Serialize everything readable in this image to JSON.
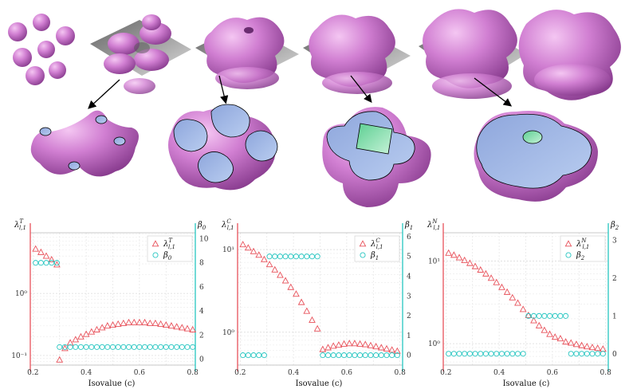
{
  "colors": {
    "red": "#e8515a",
    "cyan": "#26c6c1",
    "blob": "#c56ec6",
    "blob_dark": "#8e3f93",
    "cut_blue": "#a8bde8",
    "cut_green": "#8fe0b0",
    "plane": "#7a7a7a"
  },
  "xlabel": "Isovalue (c)",
  "chart_data": [
    {
      "type": "scatter",
      "left_axis": {
        "symbol": "λ",
        "sup": "T",
        "sub": "l,1",
        "scale": "log",
        "range": [
          0.07,
          9.5
        ],
        "ticks": [
          "10⁰",
          "10⁻¹"
        ]
      },
      "right_axis": {
        "symbol": "β",
        "sub": "0",
        "range": [
          -0.5,
          10.5
        ],
        "ticks": [
          "0",
          "2",
          "4",
          "6",
          "8",
          "10"
        ]
      },
      "xlim": [
        0.19,
        0.81
      ],
      "xticks": [
        "0.2",
        "0.4",
        "0.6",
        "0.8"
      ],
      "legend": [
        {
          "symbol": "λ",
          "sup": "T",
          "sub": "l,1",
          "marker": "triangle"
        },
        {
          "symbol": "β",
          "sub": "0",
          "marker": "circle"
        }
      ],
      "legend_position": "top-right",
      "series": [
        {
          "axis": "left",
          "marker": "triangle",
          "x": [
            0.21,
            0.23,
            0.25,
            0.27,
            0.29,
            0.3,
            0.32,
            0.34,
            0.36,
            0.38,
            0.4,
            0.42,
            0.44,
            0.46,
            0.48,
            0.5,
            0.52,
            0.54,
            0.56,
            0.58,
            0.6,
            0.62,
            0.64,
            0.66,
            0.68,
            0.7,
            0.72,
            0.74,
            0.76,
            0.78,
            0.8
          ],
          "y": [
            5.2,
            4.6,
            4.0,
            3.5,
            2.9,
            0.085,
            0.13,
            0.16,
            0.18,
            0.2,
            0.22,
            0.24,
            0.26,
            0.28,
            0.3,
            0.31,
            0.32,
            0.33,
            0.34,
            0.34,
            0.34,
            0.34,
            0.33,
            0.33,
            0.32,
            0.31,
            0.3,
            0.29,
            0.28,
            0.27,
            0.26
          ]
        },
        {
          "axis": "right",
          "marker": "circle",
          "x": [
            0.21,
            0.23,
            0.25,
            0.27,
            0.29,
            0.3,
            0.32,
            0.34,
            0.36,
            0.38,
            0.4,
            0.42,
            0.44,
            0.46,
            0.48,
            0.5,
            0.52,
            0.54,
            0.56,
            0.58,
            0.6,
            0.62,
            0.64,
            0.66,
            0.68,
            0.7,
            0.72,
            0.74,
            0.76,
            0.78,
            0.8
          ],
          "y": [
            8,
            8,
            8,
            8,
            8,
            1,
            1,
            1,
            1,
            1,
            1,
            1,
            1,
            1,
            1,
            1,
            1,
            1,
            1,
            1,
            1,
            1,
            1,
            1,
            1,
            1,
            1,
            1,
            1,
            1,
            1
          ]
        }
      ]
    },
    {
      "type": "scatter",
      "left_axis": {
        "symbol": "λ",
        "sup": "C",
        "sub": "l,1",
        "scale": "log",
        "range": [
          0.4,
          16
        ],
        "ticks": [
          "10¹",
          "10⁰"
        ]
      },
      "right_axis": {
        "symbol": "β",
        "sub": "1",
        "range": [
          -0.5,
          6.2
        ],
        "ticks": [
          "0",
          "1",
          "2",
          "3",
          "4",
          "5",
          "6"
        ]
      },
      "xlim": [
        0.19,
        0.81
      ],
      "xticks": [
        "0.2",
        "0.4",
        "0.6",
        "0.8"
      ],
      "legend": [
        {
          "symbol": "λ",
          "sup": "C",
          "sub": "l,1",
          "marker": "triangle"
        },
        {
          "symbol": "β",
          "sub": "1",
          "marker": "circle"
        }
      ],
      "legend_position": "top-right",
      "series": [
        {
          "axis": "left",
          "marker": "triangle",
          "x": [
            0.21,
            0.23,
            0.25,
            0.27,
            0.29,
            0.31,
            0.33,
            0.35,
            0.37,
            0.39,
            0.41,
            0.43,
            0.45,
            0.47,
            0.49,
            0.51,
            0.53,
            0.55,
            0.57,
            0.59,
            0.61,
            0.63,
            0.65,
            0.67,
            0.69,
            0.71,
            0.73,
            0.75,
            0.77,
            0.79
          ],
          "y": [
            11.5,
            10.5,
            9.5,
            8.6,
            7.6,
            6.6,
            5.7,
            4.9,
            4.2,
            3.5,
            2.9,
            2.3,
            1.8,
            1.4,
            1.1,
            0.62,
            0.65,
            0.68,
            0.7,
            0.72,
            0.73,
            0.73,
            0.72,
            0.71,
            0.69,
            0.67,
            0.65,
            0.63,
            0.61,
            0.59
          ]
        },
        {
          "axis": "right",
          "marker": "circle",
          "x": [
            0.21,
            0.23,
            0.25,
            0.27,
            0.29,
            0.31,
            0.33,
            0.35,
            0.37,
            0.39,
            0.41,
            0.43,
            0.45,
            0.47,
            0.49,
            0.51,
            0.53,
            0.55,
            0.57,
            0.59,
            0.61,
            0.63,
            0.65,
            0.67,
            0.69,
            0.71,
            0.73,
            0.75,
            0.77,
            0.79
          ],
          "y": [
            0,
            0,
            0,
            0,
            0,
            5,
            5,
            5,
            5,
            5,
            5,
            5,
            5,
            5,
            5,
            0,
            0,
            0,
            0,
            0,
            0,
            0,
            0,
            0,
            0,
            0,
            0,
            0,
            0,
            0
          ]
        }
      ]
    },
    {
      "type": "scatter",
      "left_axis": {
        "symbol": "λ",
        "sup": "N",
        "sub": "l,1",
        "scale": "log",
        "range": [
          0.55,
          22
        ],
        "ticks": [
          "10¹",
          "10⁰"
        ]
      },
      "right_axis": {
        "symbol": "β",
        "sub": "2",
        "range": [
          -0.3,
          3.2
        ],
        "ticks": [
          "0",
          "1",
          "2",
          "3"
        ]
      },
      "xlim": [
        0.19,
        0.81
      ],
      "xticks": [
        "0.2",
        "0.4",
        "0.6",
        "0.8"
      ],
      "legend": [
        {
          "symbol": "λ",
          "sup": "N",
          "sub": "l,1",
          "marker": "triangle"
        },
        {
          "symbol": "β",
          "sub": "2",
          "marker": "circle"
        }
      ],
      "legend_position": "top-right",
      "series": [
        {
          "axis": "left",
          "marker": "triangle",
          "x": [
            0.21,
            0.23,
            0.25,
            0.27,
            0.29,
            0.31,
            0.33,
            0.35,
            0.37,
            0.39,
            0.41,
            0.43,
            0.45,
            0.47,
            0.49,
            0.51,
            0.53,
            0.55,
            0.57,
            0.59,
            0.61,
            0.63,
            0.65,
            0.67,
            0.69,
            0.71,
            0.73,
            0.75,
            0.77,
            0.79
          ],
          "y": [
            12.5,
            11.8,
            11.0,
            10.2,
            9.4,
            8.6,
            7.8,
            7.0,
            6.2,
            5.5,
            4.8,
            4.2,
            3.6,
            3.1,
            2.6,
            2.2,
            1.9,
            1.65,
            1.45,
            1.3,
            1.2,
            1.15,
            1.05,
            1.02,
            0.98,
            0.95,
            0.92,
            0.9,
            0.88,
            0.86
          ]
        },
        {
          "axis": "right",
          "marker": "circle",
          "x": [
            0.21,
            0.23,
            0.25,
            0.27,
            0.29,
            0.31,
            0.33,
            0.35,
            0.37,
            0.39,
            0.41,
            0.43,
            0.45,
            0.47,
            0.49,
            0.51,
            0.53,
            0.55,
            0.57,
            0.59,
            0.61,
            0.63,
            0.65,
            0.67,
            0.69,
            0.71,
            0.73,
            0.75,
            0.77,
            0.79
          ],
          "y": [
            0,
            0,
            0,
            0,
            0,
            0,
            0,
            0,
            0,
            0,
            0,
            0,
            0,
            0,
            0,
            1,
            1,
            1,
            1,
            1,
            1,
            1,
            1,
            0,
            0,
            0,
            0,
            0,
            0,
            0
          ]
        }
      ]
    }
  ]
}
